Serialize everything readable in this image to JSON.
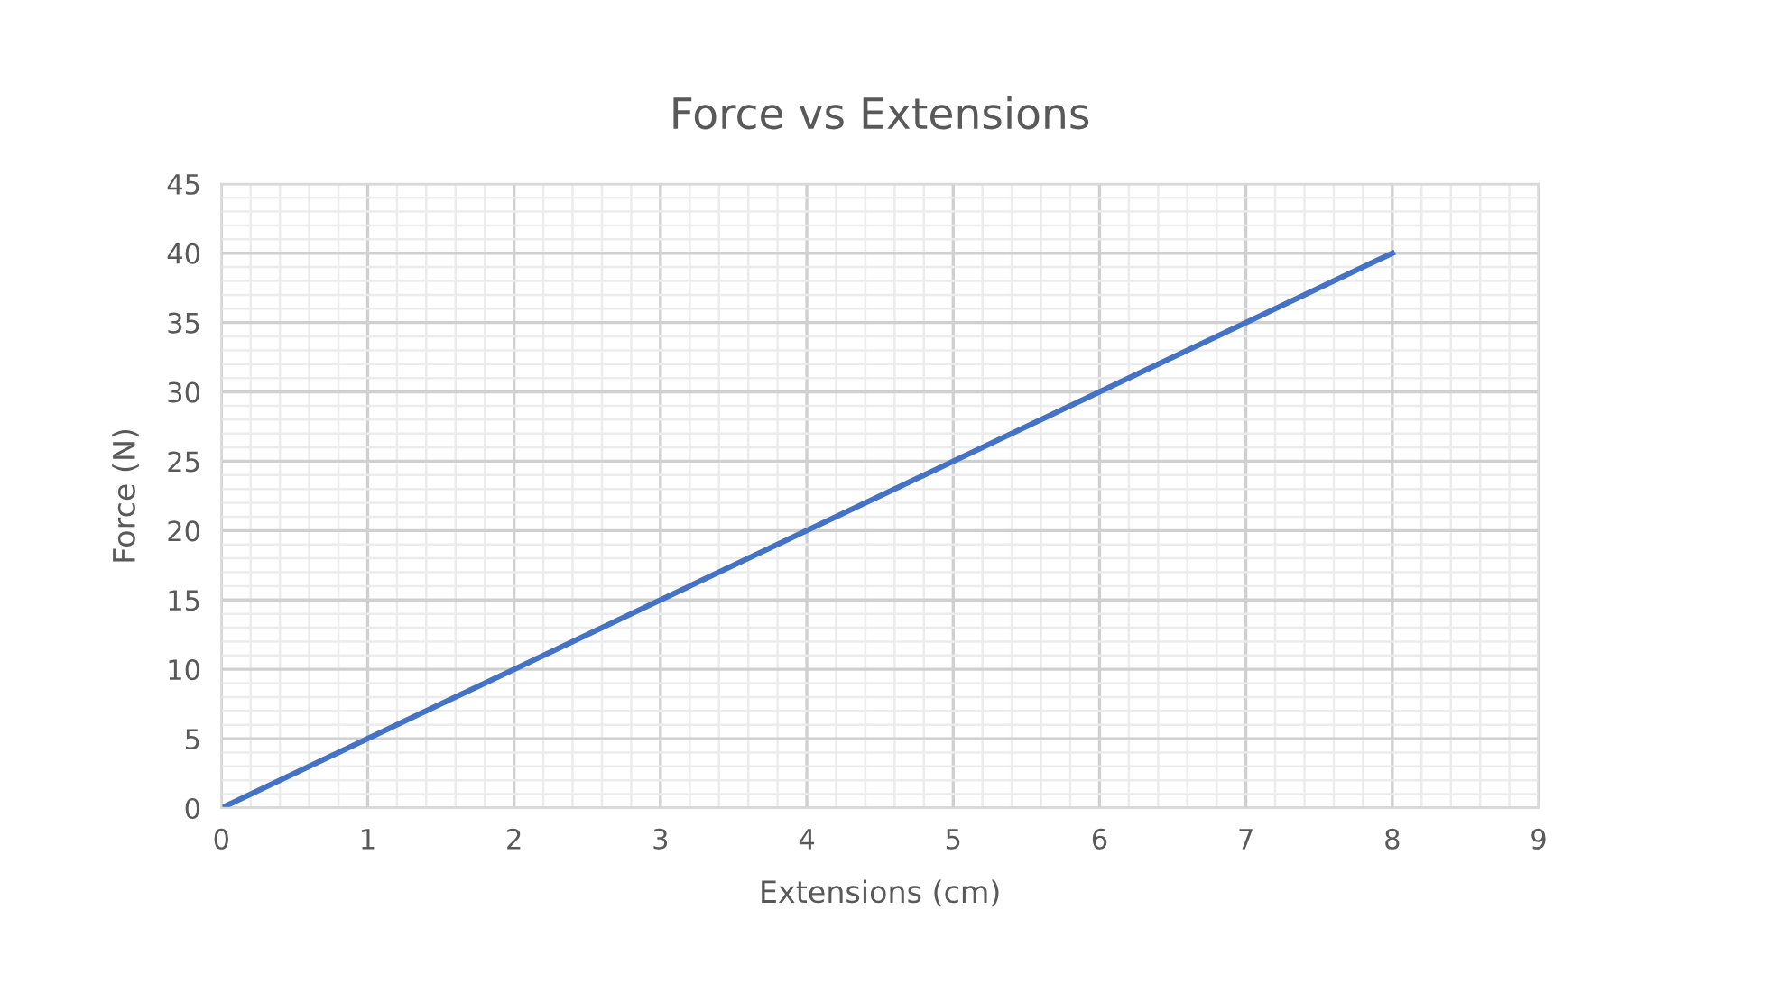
{
  "chart_data": {
    "type": "line",
    "title": "Force vs Extensions",
    "xlabel": "Extensions (cm)",
    "ylabel": "Force (N)",
    "x": [
      0,
      1,
      2,
      3,
      4,
      5,
      6,
      7,
      8
    ],
    "series": [
      {
        "color": "#4472c4",
        "values": [
          0,
          5,
          10,
          15,
          20,
          25,
          30,
          35,
          40
        ]
      }
    ],
    "xlim": [
      0,
      9
    ],
    "xticks": [
      0,
      1,
      2,
      3,
      4,
      5,
      6,
      7,
      8,
      9
    ],
    "ylim": [
      0,
      45
    ],
    "yticks": [
      0,
      5,
      10,
      15,
      20,
      25,
      30,
      35,
      40,
      45
    ],
    "grid": true,
    "marker": "none",
    "line_style": "solid"
  }
}
